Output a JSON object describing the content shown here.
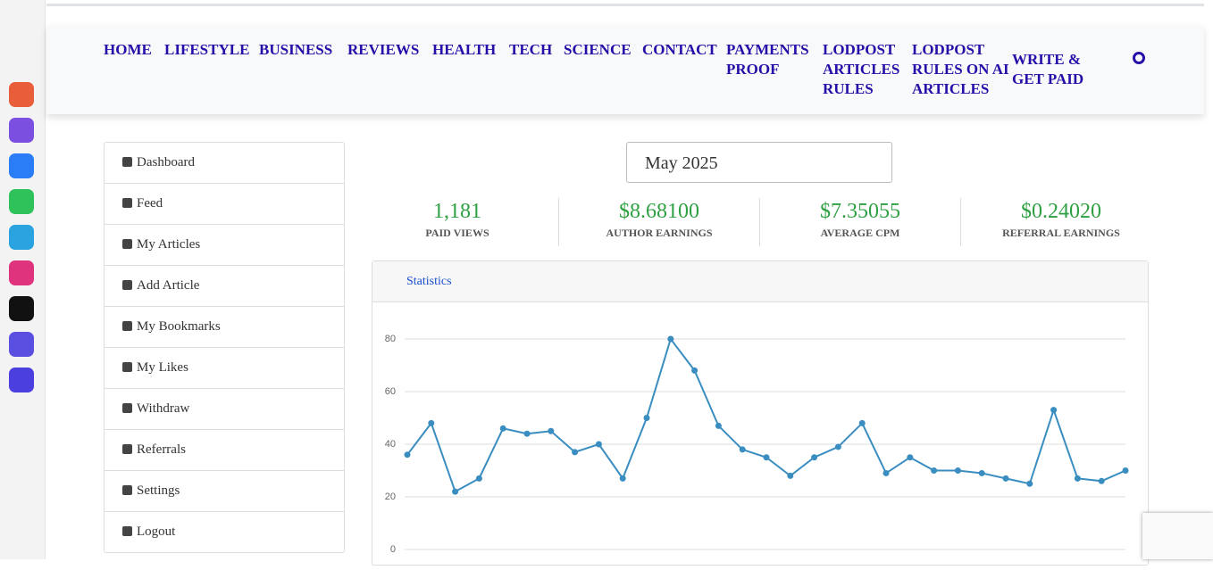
{
  "nav": [
    "HOME",
    "LIFESTYLE",
    "BUSINESS",
    "REVIEWS",
    "HEALTH",
    "TECH",
    "SCIENCE",
    "CONTACT",
    "PAYMENTS PROOF",
    "LODPOST ARTICLES RULES",
    "LODPOST RULES ON AI ARTICLES",
    "WRITE & GET PAID"
  ],
  "menu": [
    "Dashboard",
    "Feed",
    "My Articles",
    "Add Article",
    "My Bookmarks",
    "My Likes",
    "Withdraw",
    "Referrals",
    "Settings",
    "Logout"
  ],
  "month": "May 2025",
  "stats": [
    {
      "value": "1,181",
      "label": "PAID VIEWS"
    },
    {
      "value": "$8.68100",
      "label": "AUTHOR EARNINGS"
    },
    {
      "value": "$7.35055",
      "label": "AVERAGE CPM"
    },
    {
      "value": "$0.24020",
      "label": "REFERRAL EARNINGS"
    }
  ],
  "panel_title": "Statistics",
  "chart_data": {
    "type": "line",
    "color": "#3a8dc0",
    "grid": true,
    "values": [
      36,
      48,
      22,
      27,
      46,
      44,
      45,
      37,
      40,
      27,
      50,
      80,
      68,
      47,
      38,
      35,
      28,
      35,
      39,
      48,
      29,
      35,
      30,
      30,
      29,
      27,
      25,
      53,
      27,
      26,
      30
    ],
    "ylim": [
      0,
      80
    ],
    "yticks": [
      0,
      20,
      40,
      60,
      80
    ]
  }
}
